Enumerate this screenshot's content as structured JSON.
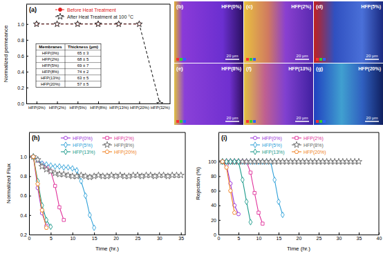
{
  "chart_data": [
    {
      "type": "line",
      "panel_label": "(a)",
      "y_label": "Normalized permeance",
      "categories": [
        "HFP(0%)",
        "HFP(2%)",
        "HFP(5%)",
        "HFP(8%)",
        "HFP(13%)",
        "HFP(20%)",
        "HFP(32%)"
      ],
      "ylim": [
        0,
        1.25
      ],
      "yticks": [
        {
          "value": 0,
          "label": "0.0"
        },
        0.2,
        0.4,
        0.6,
        0.8,
        {
          "value": 1,
          "label": "1.0"
        }
      ],
      "legend": "top",
      "series": [
        {
          "name": "Before Heat Treatment",
          "color": "#e02020",
          "marker": "circle",
          "line_style": "dashed",
          "values": [
            1,
            1,
            1,
            1,
            1,
            1,
            null
          ]
        },
        {
          "name": "After Heat Treatment at 100 °C",
          "color": "#222222",
          "marker": "open-star",
          "line_style": "dashed",
          "values": [
            1,
            1,
            1,
            1,
            1,
            1,
            0
          ]
        }
      ],
      "table": {
        "header": [
          "Membranes",
          "Thickness (μm)"
        ],
        "rows": [
          [
            "HFP(0%)",
            "65 ± 3"
          ],
          [
            "HFP(2%)",
            "68 ± 5"
          ],
          [
            "HFP(5%)",
            "69 ± 7"
          ],
          [
            "HFP(8%)",
            "74 ± 2"
          ],
          [
            "HFP(13%)",
            "63 ± 5"
          ],
          [
            "HFP(20%)",
            "57 ± 5"
          ]
        ]
      }
    },
    {
      "type": "line",
      "panel_label": "(h)",
      "x_label": "Time (hr.)",
      "y_label": "Normalized Flux",
      "xlim": [
        0,
        36
      ],
      "xticks": [
        0,
        5,
        10,
        15,
        20,
        25,
        30,
        35
      ],
      "ylim": [
        0.2,
        1.25
      ],
      "yticks": [
        0.2,
        0.4,
        0.6,
        0.8,
        {
          "value": 1,
          "label": "1.0"
        }
      ],
      "legend": "top",
      "series": [
        {
          "name": "HFP(0%)",
          "color": "#9b30d9",
          "marker": "open-circle",
          "line_style": "solid",
          "x": [
            1,
            2,
            3,
            4
          ],
          "values": [
            1,
            0.68,
            0.42,
            0.29
          ]
        },
        {
          "name": "HFP(2%)",
          "color": "#e0309a",
          "marker": "open-square",
          "line_style": "solid",
          "x": [
            1,
            2,
            3,
            4,
            5,
            6,
            7,
            8
          ],
          "values": [
            1,
            0.96,
            0.93,
            0.9,
            0.85,
            0.7,
            0.48,
            0.35
          ]
        },
        {
          "name": "HFP(5%)",
          "color": "#2fa0d8",
          "marker": "open-diamond",
          "line_style": "solid",
          "x": [
            1,
            2,
            3,
            4,
            5,
            6,
            7,
            8,
            9,
            10,
            11,
            12,
            13,
            14,
            15
          ],
          "values": [
            1,
            0.97,
            0.93,
            0.92,
            0.91,
            0.9,
            0.9,
            0.89,
            0.89,
            0.88,
            0.86,
            0.75,
            0.6,
            0.4,
            0.27
          ]
        },
        {
          "name": "HFP(8%)",
          "color": "#666666",
          "marker": "open-star",
          "line_style": "solid",
          "x": [
            1,
            2,
            3,
            4,
            5,
            6,
            7,
            8,
            9,
            10,
            11,
            12,
            13,
            14,
            15,
            16,
            17,
            18,
            19,
            20,
            21,
            22,
            23,
            24,
            25,
            26,
            27,
            28,
            29,
            30,
            31,
            32,
            33,
            34,
            35
          ],
          "values": [
            1,
            0.97,
            0.9,
            0.87,
            0.85,
            0.83,
            0.82,
            0.82,
            0.81,
            0.8,
            0.8,
            0.81,
            0.8,
            0.79,
            0.8,
            0.81,
            0.8,
            0.8,
            0.81,
            0.8,
            0.81,
            0.8,
            0.8,
            0.81,
            0.81,
            0.8,
            0.81,
            0.81,
            0.8,
            0.81,
            0.81,
            0.8,
            0.81,
            0.81,
            0.81
          ]
        },
        {
          "name": "HFP(13%)",
          "color": "#1a9a8a",
          "marker": "open-diamond",
          "line_style": "solid",
          "x": [
            1,
            2,
            3,
            4,
            5
          ],
          "values": [
            1,
            0.75,
            0.5,
            0.35,
            0.28
          ]
        },
        {
          "name": "HFP(20%)",
          "color": "#f08020",
          "marker": "open-pentagon",
          "line_style": "solid",
          "x": [
            1,
            2,
            3,
            4
          ],
          "values": [
            1,
            0.72,
            0.45,
            0.27
          ]
        }
      ]
    },
    {
      "type": "line",
      "panel_label": "(i)",
      "x_label": "Time (hr.)",
      "y_label": "Rejection (%)",
      "xlim": [
        0,
        40
      ],
      "xticks": [
        0,
        5,
        10,
        15,
        20,
        25,
        30,
        35,
        40
      ],
      "ylim": [
        0,
        140
      ],
      "yticks": [
        0,
        20,
        40,
        60,
        80,
        100
      ],
      "legend": "top",
      "series": [
        {
          "name": "HFP(0%)",
          "color": "#9b30d9",
          "marker": "open-circle",
          "line_style": "solid",
          "x": [
            1,
            2,
            3,
            4,
            5
          ],
          "values": [
            100,
            95,
            70,
            40,
            28
          ]
        },
        {
          "name": "HFP(2%)",
          "color": "#e0309a",
          "marker": "open-square",
          "line_style": "solid",
          "x": [
            1,
            2,
            3,
            4,
            5,
            6,
            7,
            8,
            9,
            10,
            11
          ],
          "values": [
            100,
            100,
            100,
            100,
            100,
            100,
            100,
            85,
            57,
            30,
            15
          ]
        },
        {
          "name": "HFP(5%)",
          "color": "#2fa0d8",
          "marker": "open-diamond",
          "line_style": "solid",
          "x": [
            1,
            2,
            3,
            4,
            5,
            6,
            7,
            8,
            9,
            10,
            11,
            12,
            13,
            14,
            15,
            16
          ],
          "values": [
            100,
            100,
            100,
            100,
            100,
            100,
            100,
            100,
            100,
            100,
            100,
            100,
            100,
            75,
            45,
            27
          ]
        },
        {
          "name": "HFP(8%)",
          "color": "#666666",
          "marker": "open-star",
          "line_style": "solid",
          "x": [
            1,
            2,
            3,
            4,
            5,
            6,
            7,
            8,
            9,
            10,
            11,
            12,
            13,
            14,
            15,
            16,
            17,
            18,
            19,
            20,
            21,
            22,
            23,
            24,
            25,
            26,
            27,
            28,
            29,
            30,
            31,
            32,
            33,
            34,
            35
          ],
          "values": [
            100,
            100,
            100,
            100,
            100,
            100,
            100,
            100,
            100,
            100,
            100,
            100,
            100,
            100,
            100,
            100,
            100,
            100,
            100,
            100,
            100,
            100,
            100,
            100,
            100,
            100,
            100,
            100,
            100,
            100,
            100,
            100,
            100,
            100,
            100
          ]
        },
        {
          "name": "HFP(13%)",
          "color": "#1a9a8a",
          "marker": "open-diamond",
          "line_style": "solid",
          "x": [
            1,
            2,
            3,
            4,
            5,
            6,
            7,
            8
          ],
          "values": [
            100,
            100,
            100,
            100,
            100,
            75,
            45,
            17
          ]
        },
        {
          "name": "HFP(20%)",
          "color": "#f08020",
          "marker": "open-pentagon",
          "line_style": "solid",
          "x": [
            1,
            2,
            3,
            4
          ],
          "values": [
            100,
            92,
            60,
            30
          ]
        }
      ]
    }
  ],
  "images": [
    {
      "panel": "(b)",
      "label": "HFP(0%)",
      "scale_bar": "20 μm"
    },
    {
      "panel": "(c)",
      "label": "HFP(2%)",
      "scale_bar": "20 μm"
    },
    {
      "panel": "(d)",
      "label": "HFP(5%)",
      "scale_bar": "20 μm"
    },
    {
      "panel": "(e)",
      "label": "HFP(8%)",
      "scale_bar": "20 μm"
    },
    {
      "panel": "(f)",
      "label": "HFP(13%)",
      "scale_bar": "20 μm"
    },
    {
      "panel": "(g)",
      "label": "HFP(20%)",
      "scale_bar": "20 μm"
    }
  ]
}
